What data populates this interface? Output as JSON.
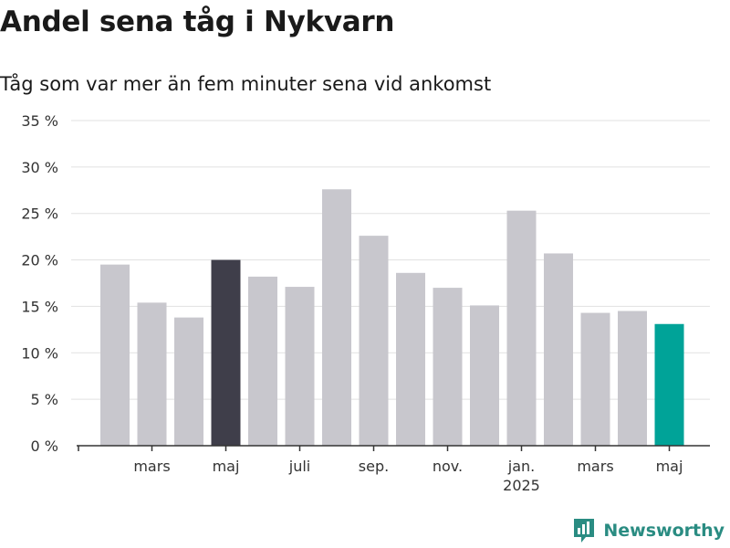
{
  "header": {
    "title": "Andel sena tåg i Nykvarn",
    "subtitle": "Tåg som var mer än fem minuter sena vid ankomst"
  },
  "brand": {
    "name": "Newsworthy",
    "color": "#2a8c82"
  },
  "colors": {
    "bar_default": "#c8c7cd",
    "bar_highlight_dark": "#3f3e4a",
    "bar_highlight_accent": "#00a398",
    "grid": "#e1e1e1",
    "axis": "#333333"
  },
  "chart_data": {
    "type": "bar",
    "x": [
      "2024-02",
      "2024-03",
      "2024-04",
      "2024-05",
      "2024-06",
      "2024-07",
      "2024-08",
      "2024-09",
      "2024-10",
      "2024-11",
      "2024-12",
      "2025-01",
      "2025-02",
      "2025-03",
      "2025-04",
      "2025-05"
    ],
    "values": [
      19.5,
      15.4,
      13.8,
      20.0,
      18.2,
      17.1,
      27.6,
      22.6,
      18.6,
      17.0,
      15.1,
      25.3,
      20.7,
      14.3,
      14.5,
      13.1
    ],
    "highlight": {
      "2024-05": "dark",
      "2025-05": "accent"
    },
    "ylim": [
      0,
      35
    ],
    "y_ticks": [
      0,
      5,
      10,
      15,
      20,
      25,
      30,
      35
    ],
    "y_tick_labels": [
      "0 %",
      "5 %",
      "10 %",
      "15 %",
      "20 %",
      "25 %",
      "30 %",
      "35 %"
    ],
    "x_tick_labels": [
      {
        "x": "2024-03",
        "label": "mars"
      },
      {
        "x": "2024-05",
        "label": "maj"
      },
      {
        "x": "2024-07",
        "label": "juli"
      },
      {
        "x": "2024-09",
        "label": "sep."
      },
      {
        "x": "2024-11",
        "label": "nov."
      },
      {
        "x": "2025-01",
        "label": "jan.",
        "sublabel": "2025"
      },
      {
        "x": "2025-03",
        "label": "mars"
      },
      {
        "x": "2025-05",
        "label": "maj"
      }
    ],
    "grid": true,
    "legend": "none"
  }
}
